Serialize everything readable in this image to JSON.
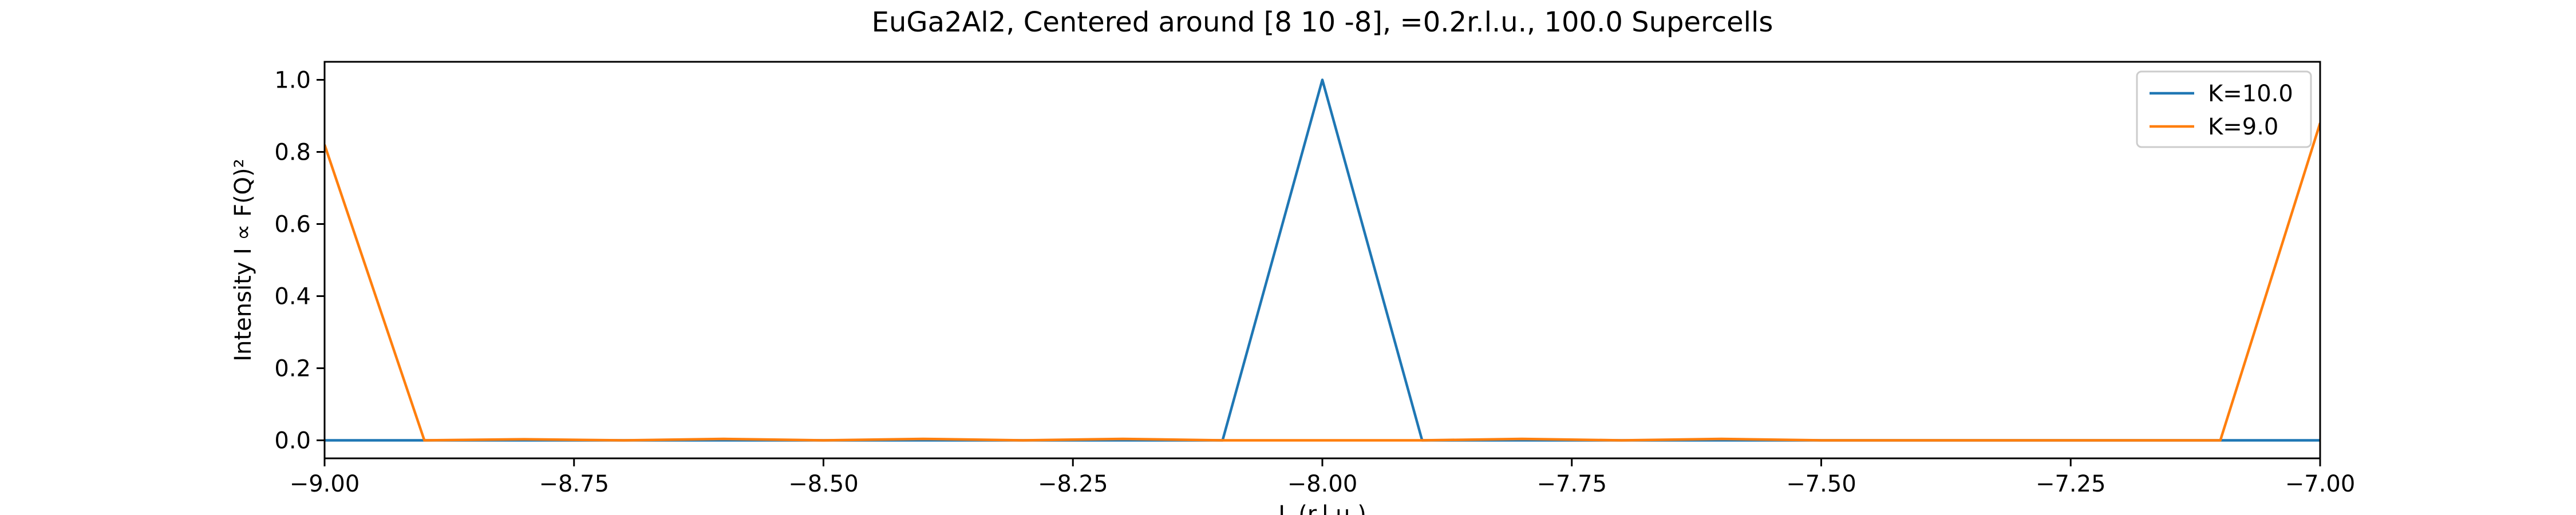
{
  "chart_data": {
    "type": "line",
    "title": "EuGa2Al2, Centered around [8 10 -8], =0.2r.l.u., 100.0 Supercells",
    "xlabel": "L (r.l.u.)",
    "ylabel": "Intensity I ∝ F(Q)²",
    "xlim": [
      -9.0,
      -7.0
    ],
    "ylim": [
      -0.05,
      1.05
    ],
    "x_ticks": [
      -9.0,
      -8.75,
      -8.5,
      -8.25,
      -8.0,
      -7.75,
      -7.5,
      -7.25,
      -7.0
    ],
    "x_tick_labels": [
      "−9.00",
      "−8.75",
      "−8.50",
      "−8.25",
      "−8.00",
      "−7.75",
      "−7.50",
      "−7.25",
      "−7.00"
    ],
    "y_ticks": [
      0.0,
      0.2,
      0.4,
      0.6,
      0.8,
      1.0
    ],
    "y_tick_labels": [
      "0.0",
      "0.2",
      "0.4",
      "0.6",
      "0.8",
      "1.0"
    ],
    "grid": false,
    "legend_position": "top-right",
    "series": [
      {
        "name": "K=10.0",
        "color": "#1f77b4",
        "x": [
          -9.0,
          -8.9,
          -8.8,
          -8.7,
          -8.6,
          -8.5,
          -8.4,
          -8.3,
          -8.2,
          -8.1,
          -8.0,
          -7.9,
          -7.8,
          -7.7,
          -7.6,
          -7.5,
          -7.4,
          -7.3,
          -7.2,
          -7.1,
          -7.0
        ],
        "y": [
          0,
          0,
          0,
          0,
          0,
          0,
          0,
          0,
          0,
          0,
          1.0,
          0,
          0,
          0,
          0,
          0,
          0,
          0,
          0,
          0,
          0
        ]
      },
      {
        "name": "K=9.0",
        "color": "#ff7f0e",
        "x": [
          -9.0,
          -8.9,
          -8.8,
          -8.7,
          -8.6,
          -8.5,
          -8.4,
          -8.3,
          -8.2,
          -8.1,
          -8.0,
          -7.9,
          -7.8,
          -7.7,
          -7.6,
          -7.5,
          -7.4,
          -7.3,
          -7.2,
          -7.1,
          -7.0
        ],
        "y": [
          0.82,
          0.0,
          0.003,
          0.0,
          0.004,
          0.0,
          0.004,
          0.0,
          0.004,
          0.0,
          0.0,
          0.0,
          0.004,
          0.0,
          0.004,
          0.0,
          0.0,
          0.0,
          0.0,
          0.0,
          0.88
        ]
      }
    ]
  }
}
